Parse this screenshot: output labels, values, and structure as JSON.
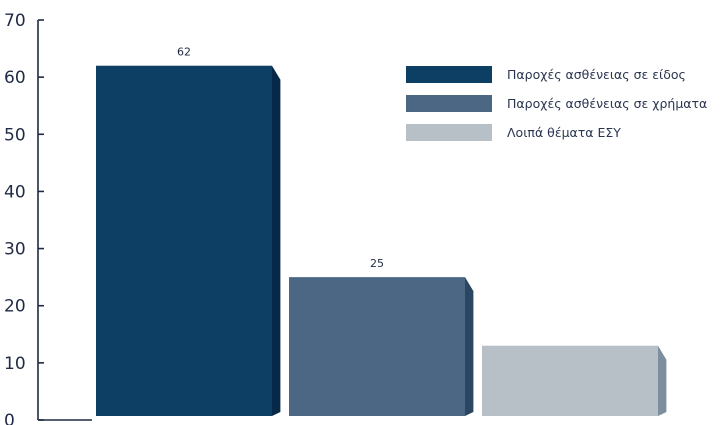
{
  "chart_data": {
    "type": "bar",
    "categories": [
      "Παροχές ασθένειας σε είδος",
      "Παροχές ασθένειας σε χρήματα",
      "Λοιπά θέματα ΕΣΥ"
    ],
    "values": [
      62,
      25,
      13
    ],
    "data_labels": [
      "62",
      "25",
      ""
    ],
    "ylim": [
      0,
      70
    ],
    "yticks": [
      0,
      10,
      20,
      30,
      40,
      50,
      60,
      70
    ],
    "grid": false,
    "legend": "top-right",
    "colors": [
      "#0d3e63",
      "#4b6784",
      "#b7bfc7"
    ],
    "shadow_colors": [
      "#06294a",
      "#2b4663",
      "#7d8e9f"
    ],
    "legend_labels": [
      "Παροχές ασθένειας σε είδος",
      "Παροχές ασθένειας σε χρήματα",
      "Λοιπά θέματα ΕΣΥ"
    ]
  }
}
